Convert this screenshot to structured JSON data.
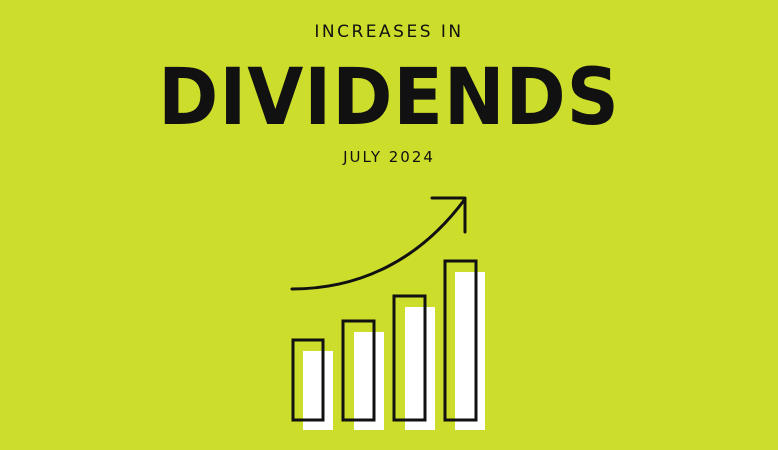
{
  "header": {
    "kicker": "INCREASES IN",
    "title": "DIVIDENDS",
    "date": "JULY 2024"
  },
  "colors": {
    "background": "#cddd2c",
    "ink": "#111111",
    "bar_fill": "#ffffff"
  },
  "illustration": {
    "icon": "rising-bar-chart-with-arrow-icon",
    "bar_count": 4
  }
}
